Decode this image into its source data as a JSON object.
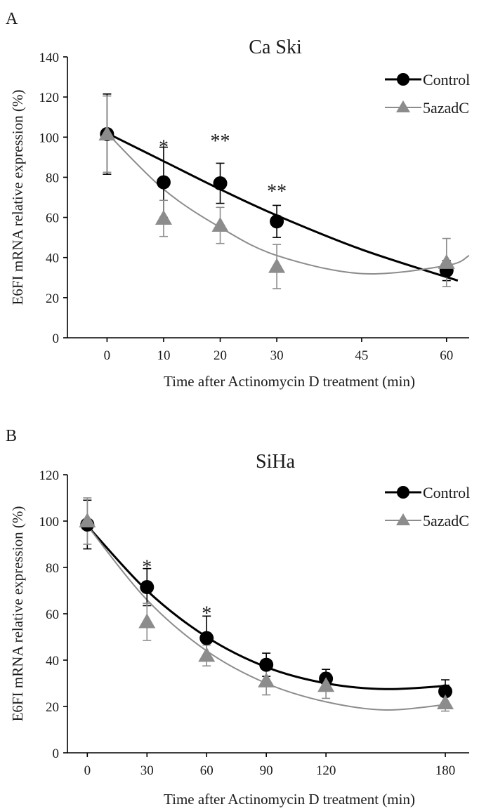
{
  "colors": {
    "control": "#000000",
    "azadc": "#8c8c8c",
    "axis": "#000000"
  },
  "chart_data": [
    {
      "type": "scatter",
      "panel_label": "A",
      "title": "Ca Ski",
      "xlabel": "Time after Actinomycin D treatment (min)",
      "ylabel": "E6FI mRNA relative expression  (%)",
      "xlim": [
        -7,
        64
      ],
      "ylim": [
        0,
        140
      ],
      "xticks": [
        0,
        10,
        20,
        30,
        45,
        60
      ],
      "yticks": [
        0,
        20,
        40,
        60,
        80,
        100,
        120,
        140
      ],
      "legend": [
        "Control",
        "5azadC"
      ],
      "legend_position": "top-right",
      "series": [
        {
          "name": "Control",
          "marker": "circle",
          "color": "#000000",
          "x": [
            0,
            10,
            20,
            30,
            60
          ],
          "y": [
            101.5,
            77.5,
            77.0,
            58.0,
            33.5
          ],
          "err": [
            20.0,
            17.5,
            10.0,
            8.0,
            5.0
          ],
          "trend": [
            [
              0,
              102
            ],
            [
              10,
              88
            ],
            [
              20,
              74
            ],
            [
              30,
              61
            ],
            [
              45,
              44
            ],
            [
              62,
              28.5
            ]
          ]
        },
        {
          "name": "5azadC",
          "marker": "triangle",
          "color": "#8c8c8c",
          "x": [
            0,
            10,
            20,
            30,
            60
          ],
          "y": [
            101.5,
            59.5,
            56.0,
            35.5,
            37.5
          ],
          "err": [
            19.0,
            9.0,
            9.0,
            11.0,
            12.0
          ],
          "trend": [
            [
              0,
              102
            ],
            [
              10,
              74
            ],
            [
              20,
              55
            ],
            [
              30,
              41
            ],
            [
              45,
              32
            ],
            [
              60,
              36
            ],
            [
              64,
              41
            ]
          ]
        }
      ],
      "annotations": [
        {
          "text": "*",
          "x": 10,
          "y": 96
        },
        {
          "text": "**",
          "x": 20,
          "y": 99
        },
        {
          "text": "**",
          "x": 30,
          "y": 74
        }
      ]
    },
    {
      "type": "scatter",
      "panel_label": "B",
      "title": "SiHa",
      "xlabel": "Time after Actinomycin D treatment (min)",
      "ylabel": "E6FI mRNA relative expression  (%)",
      "xlim": [
        -10,
        192
      ],
      "ylim": [
        0,
        120
      ],
      "xticks": [
        0,
        30,
        60,
        90,
        120,
        180
      ],
      "yticks": [
        0,
        20,
        40,
        60,
        80,
        100,
        120
      ],
      "legend": [
        "Control",
        "5azadC"
      ],
      "legend_position": "top-right",
      "series": [
        {
          "name": "Control",
          "marker": "circle",
          "color": "#000000",
          "x": [
            0,
            30,
            60,
            90,
            120,
            180
          ],
          "y": [
            98.5,
            71.5,
            49.5,
            38.0,
            32.0,
            26.5
          ],
          "err": [
            10.5,
            8.0,
            9.5,
            5.0,
            4.0,
            5.0
          ],
          "trend": [
            [
              0,
              98
            ],
            [
              30,
              70
            ],
            [
              60,
              50
            ],
            [
              90,
              37
            ],
            [
              120,
              30
            ],
            [
              150,
              27.5
            ],
            [
              182,
              29
            ]
          ]
        },
        {
          "name": "5azadC",
          "marker": "triangle",
          "color": "#8c8c8c",
          "x": [
            0,
            30,
            60,
            90,
            120,
            180
          ],
          "y": [
            100,
            56.5,
            42.0,
            31.0,
            29.0,
            21.5
          ],
          "err": [
            10.0,
            8.0,
            4.5,
            6.0,
            5.5,
            3.5
          ],
          "trend": [
            [
              0,
              98
            ],
            [
              30,
              66
            ],
            [
              60,
              44
            ],
            [
              90,
              30
            ],
            [
              120,
              22
            ],
            [
              150,
              18.5
            ],
            [
              182,
              21
            ]
          ]
        }
      ],
      "annotations": [
        {
          "text": "*",
          "x": 30,
          "y": 81
        },
        {
          "text": "*",
          "x": 60,
          "y": 61
        }
      ]
    }
  ]
}
